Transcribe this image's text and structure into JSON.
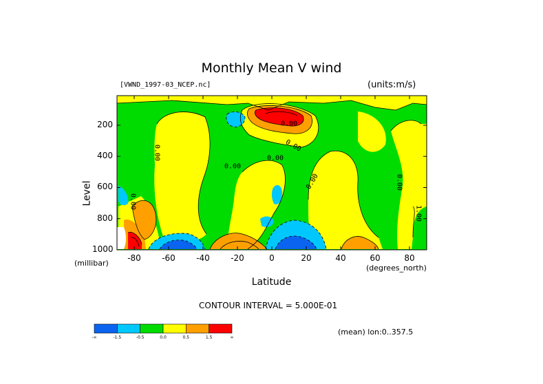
{
  "page": {
    "title": "Monthly Mean V wind",
    "file_label": "[VWND_1997-03_NCEP.nc]",
    "units_label": "(units:m/s)",
    "ylabel": "Level",
    "y_units_label": "(millibar)",
    "xlabel": "Latitude",
    "x_units_label": "(degrees_north)",
    "contour_interval": "CONTOUR INTERVAL = 5.000E-01",
    "mean_label": "(mean) lon:0..357.5"
  },
  "chart_data": {
    "type": "heatmap",
    "title": "Monthly Mean V wind",
    "xlabel": "Latitude",
    "ylabel": "Level",
    "x_units": "(degrees_north)",
    "y_units": "(millibar)",
    "xlim": [
      -90,
      90
    ],
    "ylim": [
      1000,
      10
    ],
    "x_ticks": [
      "-80",
      "-60",
      "-40",
      "-20",
      "0",
      "20",
      "40",
      "60",
      "80"
    ],
    "y_ticks": [
      "200",
      "400",
      "600",
      "800",
      "1000"
    ],
    "contour_labels": [
      "0.00",
      "0.00",
      "0.00",
      "0.00",
      "0.00",
      "0.00",
      "0.00",
      "1.00",
      "0.00"
    ],
    "colorbar": {
      "bins": [
        {
          "color": "#0a64f0",
          "range": "< -1.5"
        },
        {
          "color": "#00c8ff",
          "range": "-1.5 to -0.5"
        },
        {
          "color": "#00dc00",
          "range": "-0.5 to 0.0"
        },
        {
          "color": "#ffff00",
          "range": "0.0 to 0.5"
        },
        {
          "color": "#ffa000",
          "range": "0.5 to 1.5"
        },
        {
          "color": "#ff0000",
          "range": "> 1.5"
        }
      ],
      "tick_labels": [
        "-∞",
        "-1.5",
        "-0.5",
        "0.0",
        "0.5",
        "1.5",
        "∞"
      ]
    },
    "colors": {
      "strong_negative": "#0a64f0",
      "negative": "#00c8ff",
      "weak_negative": "#00dc00",
      "weak_positive": "#ffff00",
      "positive": "#ffa000",
      "strong_positive": "#ff0000"
    }
  }
}
